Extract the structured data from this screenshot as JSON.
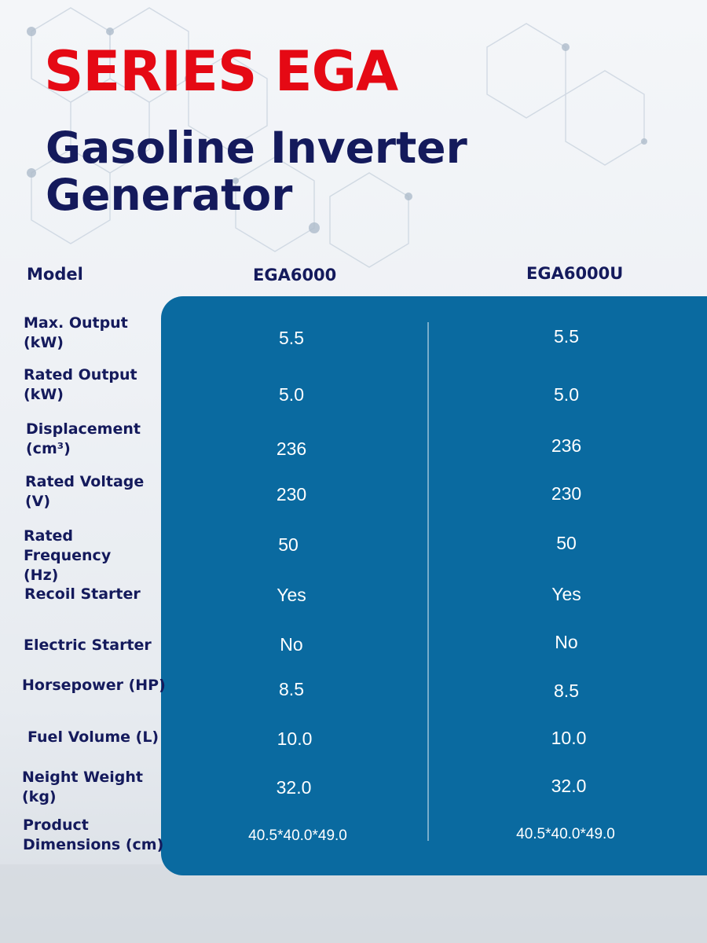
{
  "title": {
    "series": "SERIES EGA",
    "line1": "Gasoline Inverter",
    "line2": "Generator"
  },
  "table": {
    "header": {
      "label": "Model",
      "col1": "EGA6000",
      "col2": "EGA6000U"
    },
    "rows": [
      {
        "label1": "Max. Output",
        "label2": "(kW)",
        "v1": "5.5",
        "v2": "5.5"
      },
      {
        "label1": "Rated Output",
        "label2": "(kW)",
        "v1": "5.0",
        "v2": "5.0"
      },
      {
        "label1": "Displacement",
        "label2": "(cm³)",
        "v1": "236",
        "v2": "236"
      },
      {
        "label1": "Rated Voltage",
        "label2": "(V)",
        "v1": "230",
        "v2": "230"
      },
      {
        "label1": "Rated Frequency",
        "label2": "(Hz)",
        "v1": "50",
        "v2": "50"
      },
      {
        "label1": "Recoil Starter",
        "label2": "",
        "v1": "Yes",
        "v2": "Yes"
      },
      {
        "label1": "Electric Starter",
        "label2": "",
        "v1": "No",
        "v2": "No"
      },
      {
        "label1": "Horsepower (HP)",
        "label2": "",
        "v1": "8.5",
        "v2": "8.5"
      },
      {
        "label1": "Fuel Volume (L)",
        "label2": "",
        "v1": "10.0",
        "v2": "10.0"
      },
      {
        "label1": "Neight Weight",
        "label2": "(kg)",
        "v1": "32.0",
        "v2": "32.0"
      },
      {
        "label1": "Product",
        "label2": "Dimensions (cm)",
        "v1": "40.5*40.0*49.0",
        "v2": "40.5*40.0*49.0"
      }
    ]
  },
  "colors": {
    "series": "#e50914",
    "title": "#141a5c",
    "panel": "#0a6aa0",
    "value_text": "#ffffff"
  }
}
